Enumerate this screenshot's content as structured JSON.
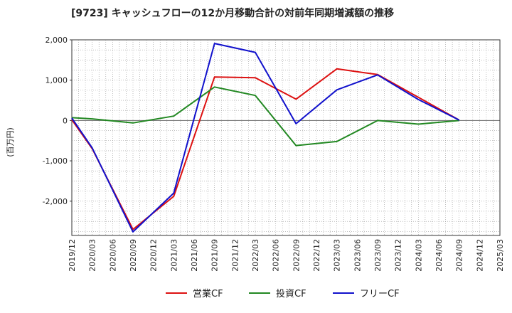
{
  "chart_data": {
    "type": "line",
    "title": "[9723]  キャッシュフローの12か月移動合計の対前年同期増減額の推移",
    "ylabel": "(百万円)",
    "xlabel": "",
    "ylim": [
      -2850,
      2000
    ],
    "yticks": [
      2000,
      1000,
      0,
      -1000,
      -2000
    ],
    "ytick_labels": [
      "2,000",
      "1,000",
      "0",
      "-1,000",
      "-2,000"
    ],
    "categories": [
      "2019/12",
      "2020/03",
      "2020/06",
      "2020/09",
      "2020/12",
      "2021/03",
      "2021/06",
      "2021/09",
      "2021/12",
      "2022/03",
      "2022/06",
      "2022/09",
      "2022/12",
      "2023/03",
      "2023/06",
      "2023/09",
      "2023/12",
      "2024/03",
      "2024/06",
      "2024/09",
      "2024/12",
      "2025/03"
    ],
    "grid": true,
    "legend_position": "bottom",
    "series": [
      {
        "name": "営業CF",
        "color": "#dd1111",
        "values": [
          20,
          -700,
          null,
          -2700,
          null,
          -1880,
          null,
          1080,
          null,
          1060,
          null,
          530,
          null,
          1280,
          null,
          1140,
          null,
          null,
          null,
          10,
          null,
          null
        ]
      },
      {
        "name": "投資CF",
        "color": "#228822",
        "values": [
          70,
          40,
          null,
          -60,
          null,
          110,
          null,
          830,
          null,
          620,
          null,
          -620,
          null,
          -520,
          null,
          0,
          null,
          -90,
          null,
          0,
          null,
          null
        ]
      },
      {
        "name": "フリーCF",
        "color": "#1111cc",
        "values": [
          60,
          -680,
          null,
          -2760,
          null,
          -1800,
          null,
          1910,
          null,
          1690,
          null,
          -80,
          null,
          760,
          null,
          1130,
          null,
          520,
          null,
          10,
          null,
          null
        ]
      }
    ]
  }
}
